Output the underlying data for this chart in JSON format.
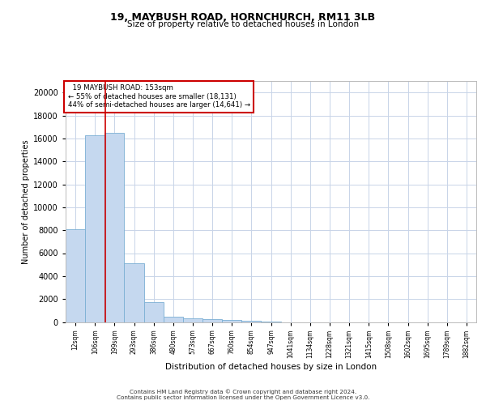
{
  "title1": "19, MAYBUSH ROAD, HORNCHURCH, RM11 3LB",
  "title2": "Size of property relative to detached houses in London",
  "xlabel": "Distribution of detached houses by size in London",
  "ylabel": "Number of detached properties",
  "categories": [
    "12sqm",
    "106sqm",
    "199sqm",
    "293sqm",
    "386sqm",
    "480sqm",
    "573sqm",
    "667sqm",
    "760sqm",
    "854sqm",
    "947sqm",
    "1041sqm",
    "1134sqm",
    "1228sqm",
    "1321sqm",
    "1415sqm",
    "1508sqm",
    "1602sqm",
    "1695sqm",
    "1789sqm",
    "1882sqm"
  ],
  "values": [
    8050,
    16300,
    16500,
    5100,
    1750,
    480,
    350,
    230,
    160,
    110,
    60,
    0,
    0,
    0,
    0,
    0,
    0,
    0,
    0,
    0,
    0
  ],
  "bar_color": "#c5d8ef",
  "bar_edge_color": "#7bafd4",
  "grid_color": "#c8d4e8",
  "annotation_box_color": "#ffffff",
  "annotation_box_edge": "#cc0000",
  "annotation_line_color": "#cc0000",
  "annotation_text_line1": "  19 MAYBUSH ROAD: 153sqm",
  "annotation_text_line2": "← 55% of detached houses are smaller (18,131)",
  "annotation_text_line3": "44% of semi-detached houses are larger (14,641) →",
  "property_line_x": 1.53,
  "ylim": [
    0,
    21000
  ],
  "yticks": [
    0,
    2000,
    4000,
    6000,
    8000,
    10000,
    12000,
    14000,
    16000,
    18000,
    20000
  ],
  "footer_line1": "Contains HM Land Registry data © Crown copyright and database right 2024.",
  "footer_line2": "Contains public sector information licensed under the Open Government Licence v3.0."
}
